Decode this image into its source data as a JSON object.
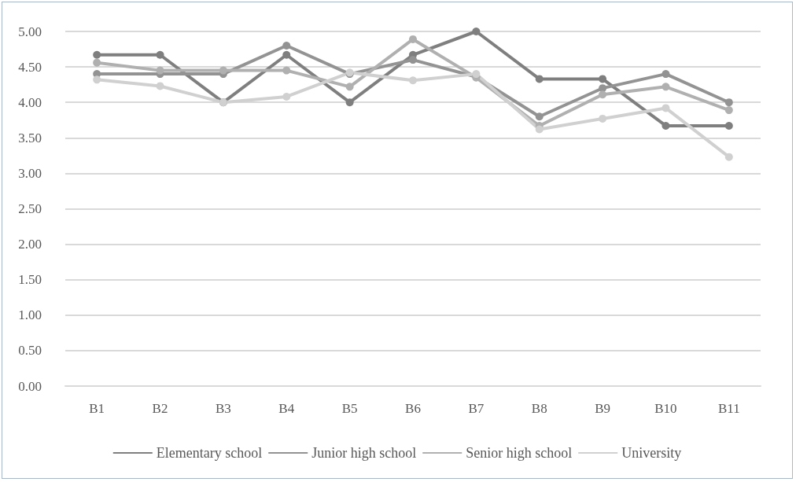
{
  "chart_data": {
    "type": "line",
    "categories": [
      "B1",
      "B2",
      "B3",
      "B4",
      "B5",
      "B6",
      "B7",
      "B8",
      "B9",
      "B10",
      "B11"
    ],
    "series": [
      {
        "name": "Elementary school",
        "color": "#7f7f7f",
        "values": [
          4.67,
          4.67,
          4.0,
          4.67,
          4.0,
          4.67,
          5.0,
          4.33,
          4.33,
          3.67,
          3.67
        ]
      },
      {
        "name": "Junior high school",
        "color": "#939393",
        "values": [
          4.4,
          4.4,
          4.4,
          4.8,
          4.4,
          4.6,
          4.36,
          3.8,
          4.2,
          4.4,
          4.0
        ]
      },
      {
        "name": "Senior high school",
        "color": "#b0b0b0",
        "values": [
          4.56,
          4.45,
          4.45,
          4.45,
          4.22,
          4.89,
          4.35,
          3.67,
          4.11,
          4.22,
          3.89
        ]
      },
      {
        "name": "University",
        "color": "#d0d0d0",
        "values": [
          4.32,
          4.23,
          4.0,
          4.08,
          4.42,
          4.31,
          4.4,
          3.62,
          3.77,
          3.92,
          3.23
        ]
      }
    ],
    "ylim": [
      0,
      5
    ],
    "yticks": [
      {
        "value": 0,
        "label": "0.00"
      },
      {
        "value": 0.5,
        "label": "0.50"
      },
      {
        "value": 1,
        "label": "1.00"
      },
      {
        "value": 1.5,
        "label": "1.50"
      },
      {
        "value": 2,
        "label": "2.00"
      },
      {
        "value": 2.5,
        "label": "2.50"
      },
      {
        "value": 3,
        "label": "3.00"
      },
      {
        "value": 3.5,
        "label": "3.50"
      },
      {
        "value": 4,
        "label": "4.00"
      },
      {
        "value": 4.5,
        "label": "4.50"
      },
      {
        "value": 5,
        "label": "5.00"
      }
    ],
    "grid": "y",
    "legend": "bottom",
    "marker": "circle",
    "line_style": "solid"
  }
}
